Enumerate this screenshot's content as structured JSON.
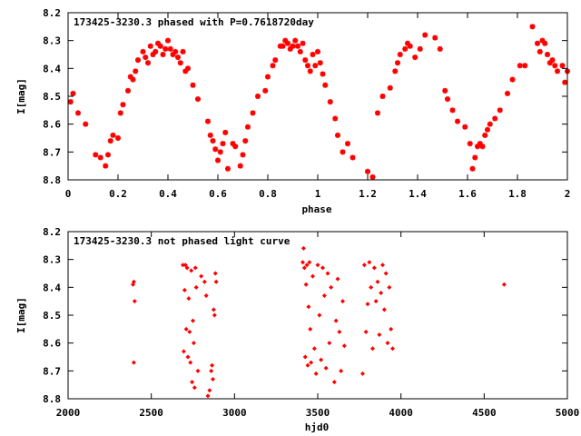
{
  "chart_data": [
    {
      "type": "scatter",
      "title": "173425-3230.3 phased with P=0.7618720day",
      "xlabel": "phase",
      "ylabel": "I[mag]",
      "xlim": [
        0,
        2
      ],
      "ylim": [
        8.2,
        8.8
      ],
      "y_inverted": true,
      "xticks": [
        0,
        0.2,
        0.4,
        0.6,
        0.8,
        1,
        1.2,
        1.4,
        1.6,
        1.8,
        2
      ],
      "xtick_labels": [
        "0",
        "0.2",
        "0.4",
        "0.6",
        "0.8",
        "1",
        "1.2",
        "1.4",
        "1.6",
        "1.8",
        "2"
      ],
      "yticks": [
        8.2,
        8.3,
        8.4,
        8.5,
        8.6,
        8.7,
        8.8
      ],
      "ytick_labels": [
        "8.2",
        "8.3",
        "8.4",
        "8.5",
        "8.6",
        "8.7",
        "8.8"
      ],
      "marker": "plus-cross",
      "color": "#ff0000",
      "grid": false,
      "legend": "none",
      "series": [
        {
          "x": [
            0.01,
            0.02,
            0.04,
            0.07,
            0.11,
            0.13,
            0.15,
            0.16,
            0.17,
            0.18,
            0.2,
            0.21,
            0.22,
            0.24,
            0.25,
            0.26,
            0.27,
            0.28,
            0.3,
            0.31,
            0.32,
            0.33,
            0.34,
            0.35,
            0.36,
            0.37,
            0.38,
            0.39,
            0.4,
            0.41,
            0.42,
            0.43,
            0.44,
            0.45,
            0.46,
            0.47,
            0.48,
            0.5,
            0.52,
            0.56,
            0.57,
            0.58,
            0.59,
            0.6,
            0.61,
            0.62,
            0.63,
            0.64,
            0.66,
            0.67,
            0.69,
            0.7,
            0.71,
            0.72,
            0.74,
            0.76,
            0.79,
            0.8,
            0.82,
            0.83,
            0.85,
            0.86,
            0.87,
            0.88,
            0.89,
            0.9,
            0.91,
            0.92,
            0.93,
            0.94,
            0.95,
            0.96,
            0.97,
            0.98,
            0.99,
            1.0,
            1.01,
            1.02,
            1.03,
            1.05,
            1.07,
            1.08,
            1.1,
            1.12,
            1.14,
            1.2,
            1.22,
            1.24,
            1.26,
            1.29,
            1.31,
            1.32,
            1.33,
            1.35,
            1.36,
            1.37,
            1.39,
            1.41,
            1.43,
            1.47,
            1.49,
            1.51,
            1.52,
            1.54,
            1.56,
            1.59,
            1.61,
            1.62,
            1.63,
            1.64,
            1.65,
            1.66,
            1.67,
            1.68,
            1.69,
            1.71,
            1.73,
            1.76,
            1.78,
            1.81,
            1.83,
            1.86,
            1.88,
            1.89,
            1.9,
            1.91,
            1.92,
            1.93,
            1.94,
            1.95,
            1.96,
            1.98,
            1.99,
            2.0
          ],
          "y": [
            8.52,
            8.49,
            8.56,
            8.6,
            8.71,
            8.72,
            8.75,
            8.71,
            8.66,
            8.64,
            8.65,
            8.56,
            8.53,
            8.48,
            8.43,
            8.44,
            8.41,
            8.37,
            8.34,
            8.36,
            8.38,
            8.32,
            8.35,
            8.34,
            8.31,
            8.32,
            8.35,
            8.33,
            8.3,
            8.33,
            8.35,
            8.34,
            8.36,
            8.38,
            8.34,
            8.41,
            8.4,
            8.46,
            8.51,
            8.59,
            8.64,
            8.66,
            8.69,
            8.73,
            8.7,
            8.67,
            8.63,
            8.76,
            8.67,
            8.68,
            8.75,
            8.71,
            8.66,
            8.61,
            8.56,
            8.5,
            8.48,
            8.43,
            8.39,
            8.37,
            8.32,
            8.32,
            8.3,
            8.31,
            8.33,
            8.32,
            8.3,
            8.32,
            8.34,
            8.31,
            8.37,
            8.39,
            8.41,
            8.35,
            8.39,
            8.34,
            8.38,
            8.42,
            8.46,
            8.52,
            8.58,
            8.64,
            8.7,
            8.67,
            8.72,
            8.77,
            8.79,
            8.56,
            8.5,
            8.47,
            8.41,
            8.38,
            8.35,
            8.33,
            8.31,
            8.32,
            8.36,
            8.33,
            8.28,
            8.29,
            8.33,
            8.48,
            8.51,
            8.55,
            8.59,
            8.61,
            8.67,
            8.76,
            8.72,
            8.68,
            8.67,
            8.68,
            8.64,
            8.62,
            8.6,
            8.58,
            8.55,
            8.49,
            8.44,
            8.39,
            8.39,
            8.25,
            8.31,
            8.34,
            8.3,
            8.31,
            8.35,
            8.38,
            8.37,
            8.39,
            8.41,
            8.39,
            8.45,
            8.41
          ]
        }
      ]
    },
    {
      "type": "scatter",
      "title": "173425-3230.3 not phased light curve",
      "xlabel": "hjd0",
      "ylabel": "I[mag]",
      "xlim": [
        2000,
        5000
      ],
      "ylim": [
        8.2,
        8.8
      ],
      "y_inverted": true,
      "xticks": [
        2000,
        2500,
        3000,
        3500,
        4000,
        4500,
        5000
      ],
      "xtick_labels": [
        "2000",
        "2500",
        "3000",
        "3500",
        "4000",
        "4500",
        "5000"
      ],
      "yticks": [
        8.2,
        8.3,
        8.4,
        8.5,
        8.6,
        8.7,
        8.8
      ],
      "ytick_labels": [
        "8.2",
        "8.3",
        "8.4",
        "8.5",
        "8.6",
        "8.7",
        "8.8"
      ],
      "marker": "diamond",
      "color": "#ff0000",
      "grid": false,
      "legend": "none",
      "series": [
        {
          "x": [
            2390,
            2395,
            2400,
            2395,
            2690,
            2695,
            2700,
            2705,
            2710,
            2715,
            2720,
            2725,
            2730,
            2735,
            2740,
            2745,
            2750,
            2755,
            2760,
            2765,
            2770,
            2780,
            2800,
            2820,
            2830,
            2840,
            2850,
            2860,
            2865,
            2870,
            2875,
            2880,
            2885,
            2890,
            3410,
            3415,
            3420,
            3425,
            3430,
            3435,
            3440,
            3445,
            3450,
            3455,
            3460,
            3470,
            3480,
            3490,
            3500,
            3510,
            3520,
            3530,
            3540,
            3550,
            3560,
            3570,
            3580,
            3600,
            3610,
            3620,
            3630,
            3640,
            3650,
            3660,
            3770,
            3780,
            3790,
            3800,
            3810,
            3820,
            3830,
            3840,
            3850,
            3860,
            3870,
            3880,
            3890,
            3900,
            3910,
            3920,
            3930,
            3940,
            3950,
            4620
          ],
          "y": [
            8.39,
            8.38,
            8.45,
            8.67,
            8.32,
            8.63,
            8.41,
            8.32,
            8.55,
            8.33,
            8.65,
            8.44,
            8.56,
            8.67,
            8.34,
            8.74,
            8.52,
            8.6,
            8.76,
            8.33,
            8.4,
            8.7,
            8.36,
            8.38,
            8.43,
            8.79,
            8.77,
            8.7,
            8.68,
            8.73,
            8.48,
            8.5,
            8.35,
            8.38,
            8.31,
            8.26,
            8.33,
            8.65,
            8.39,
            8.32,
            8.68,
            8.47,
            8.31,
            8.55,
            8.67,
            8.36,
            8.62,
            8.71,
            8.32,
            8.5,
            8.66,
            8.33,
            8.43,
            8.69,
            8.35,
            8.6,
            8.4,
            8.74,
            8.52,
            8.37,
            8.56,
            8.7,
            8.45,
            8.61,
            8.71,
            8.32,
            8.56,
            8.46,
            8.31,
            8.4,
            8.62,
            8.33,
            8.45,
            8.38,
            8.57,
            8.42,
            8.32,
            8.48,
            8.35,
            8.6,
            8.4,
            8.55,
            8.62,
            8.39
          ]
        }
      ]
    }
  ]
}
